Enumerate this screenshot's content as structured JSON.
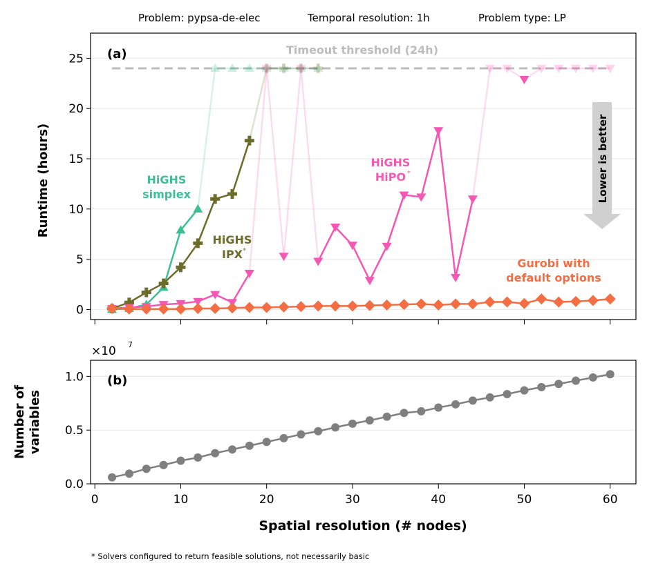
{
  "header": {
    "problem": "Problem: pypsa-de-elec",
    "temporal": "Temporal resolution: 1h",
    "type": "Problem type: LP"
  },
  "footnote": "* Solvers configured to return feasible solutions, not necessarily basic",
  "chart_data": [
    {
      "type": "line",
      "panel_label": "(a)",
      "ylabel": "Runtime (hours)",
      "xlim": [
        -0.5,
        63
      ],
      "ylim": [
        -1,
        27.5
      ],
      "yticks": [
        0,
        5,
        10,
        15,
        20,
        25
      ],
      "xticks": [
        0,
        10,
        20,
        30,
        40,
        50,
        60
      ],
      "grid": "horizontal",
      "timeout": {
        "value": 24,
        "label": "Timeout threshold (24h)",
        "color": "#bdbdbd"
      },
      "annotation_arrow": {
        "label": "Lower is better",
        "color": "#d0d0d0"
      },
      "series": [
        {
          "name": "HiGHS simplex",
          "label_lines": [
            "HiGHS",
            "simplex"
          ],
          "color": "#3dbf95",
          "marker": "triangle-up",
          "x": [
            2,
            4,
            6,
            8,
            10,
            12,
            14,
            16,
            18,
            20,
            22,
            24,
            26
          ],
          "values": [
            0.0,
            0.1,
            0.5,
            2.2,
            7.9,
            10.0,
            24,
            24,
            24,
            24,
            24,
            24,
            24
          ],
          "timed_out": [
            false,
            false,
            false,
            false,
            false,
            false,
            true,
            true,
            true,
            true,
            true,
            true,
            true
          ]
        },
        {
          "name": "HiGHS IPX*",
          "label_lines": [
            "HiGHS",
            "IPX",
            "*"
          ],
          "color": "#6b6b2a",
          "marker": "plus",
          "x": [
            2,
            4,
            6,
            8,
            10,
            12,
            14,
            16,
            18,
            20,
            22,
            24,
            26
          ],
          "values": [
            0.1,
            0.7,
            1.7,
            2.6,
            4.2,
            6.6,
            11.0,
            11.5,
            16.8,
            24,
            24,
            24,
            24
          ],
          "timed_out": [
            false,
            false,
            false,
            false,
            false,
            false,
            false,
            false,
            false,
            true,
            true,
            true,
            true
          ]
        },
        {
          "name": "HiGHS HiPO*",
          "label_lines": [
            "HiGHS",
            "HiPO",
            "*"
          ],
          "color": "#f557b4",
          "marker": "triangle-down",
          "x": [
            2,
            4,
            6,
            8,
            10,
            12,
            14,
            16,
            18,
            20,
            22,
            24,
            26,
            28,
            30,
            32,
            34,
            36,
            38,
            40,
            42,
            44,
            46,
            48,
            50,
            52,
            54,
            56,
            58,
            60
          ],
          "values": [
            0.1,
            0.2,
            0.3,
            0.5,
            0.6,
            0.8,
            1.5,
            0.7,
            3.6,
            24,
            5.3,
            24,
            4.8,
            8.2,
            6.4,
            2.9,
            6.3,
            11.4,
            11.2,
            17.8,
            3.2,
            11.0,
            24,
            24,
            22.9,
            24,
            24,
            24,
            24,
            24
          ],
          "timed_out": [
            false,
            false,
            false,
            false,
            false,
            false,
            false,
            false,
            false,
            true,
            false,
            true,
            false,
            false,
            false,
            false,
            false,
            false,
            false,
            false,
            false,
            false,
            true,
            true,
            false,
            true,
            true,
            true,
            true,
            true
          ]
        },
        {
          "name": "Gurobi with default options",
          "label_lines": [
            "Gurobi with",
            "default options"
          ],
          "color": "#f46d43",
          "marker": "diamond",
          "x": [
            2,
            4,
            6,
            8,
            10,
            12,
            14,
            16,
            18,
            20,
            22,
            24,
            26,
            28,
            30,
            32,
            34,
            36,
            38,
            40,
            42,
            44,
            46,
            48,
            50,
            52,
            54,
            56,
            58,
            60
          ],
          "values": [
            0.1,
            0.05,
            0.05,
            0.05,
            0.05,
            0.1,
            0.1,
            0.15,
            0.2,
            0.2,
            0.25,
            0.3,
            0.35,
            0.35,
            0.35,
            0.4,
            0.45,
            0.5,
            0.55,
            0.45,
            0.55,
            0.55,
            0.75,
            0.75,
            0.6,
            1.05,
            0.75,
            0.8,
            0.9,
            1.05
          ],
          "timed_out": []
        }
      ]
    },
    {
      "type": "line",
      "panel_label": "(b)",
      "xlabel": "Spatial resolution (# nodes)",
      "ylabel_lines": [
        "Number of",
        "variables"
      ],
      "scale_label": "×10",
      "scale_exp": "7",
      "xlim": [
        -0.5,
        63
      ],
      "ylim": [
        0,
        1.15
      ],
      "yticks": [
        "0.0",
        "0.5",
        "1.0"
      ],
      "xticks": [
        0,
        10,
        20,
        30,
        40,
        50,
        60
      ],
      "grid": "horizontal",
      "series": [
        {
          "color": "#7f7f7f",
          "marker": "circle",
          "x": [
            2,
            4,
            6,
            8,
            10,
            12,
            14,
            16,
            18,
            20,
            22,
            24,
            26,
            28,
            30,
            32,
            34,
            36,
            38,
            40,
            42,
            44,
            46,
            48,
            50,
            52,
            54,
            56,
            58,
            60
          ],
          "values": [
            0.06,
            0.095,
            0.14,
            0.175,
            0.215,
            0.245,
            0.285,
            0.32,
            0.355,
            0.39,
            0.425,
            0.46,
            0.49,
            0.525,
            0.56,
            0.59,
            0.625,
            0.66,
            0.675,
            0.71,
            0.74,
            0.775,
            0.805,
            0.835,
            0.87,
            0.9,
            0.93,
            0.96,
            0.99,
            1.02
          ]
        }
      ]
    }
  ]
}
